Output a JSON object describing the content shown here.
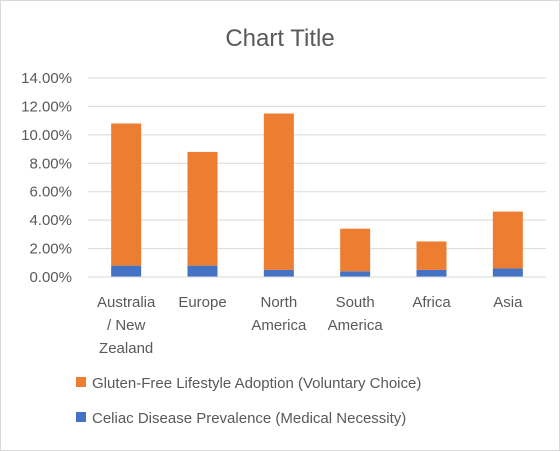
{
  "chart_data": {
    "type": "bar",
    "stacked": true,
    "title": "Chart Title",
    "categories": [
      [
        "Australia",
        "/ New",
        "Zealand"
      ],
      [
        "Europe"
      ],
      [
        "North",
        "America"
      ],
      [
        "South",
        "America"
      ],
      [
        "Africa"
      ],
      [
        "Asia"
      ]
    ],
    "series": [
      {
        "name": "Celiac Disease Prevalence (Medical Necessity)",
        "color": "#4472C4",
        "values": [
          0.8,
          0.8,
          0.5,
          0.4,
          0.5,
          0.6
        ]
      },
      {
        "name": "Gluten-Free Lifestyle Adoption (Voluntary Choice)",
        "color": "#ED7D31",
        "values": [
          10.0,
          8.0,
          11.0,
          3.0,
          2.0,
          4.0
        ]
      }
    ],
    "ylim": [
      0,
      14
    ],
    "ytick_step": 2,
    "ytick_labels": [
      "0.00%",
      "2.00%",
      "4.00%",
      "6.00%",
      "8.00%",
      "10.00%",
      "12.00%",
      "14.00%"
    ],
    "grid": true,
    "gridline_color": "#d9d9d9",
    "legend": {
      "placement": "bottom",
      "order": [
        1,
        0
      ]
    }
  }
}
